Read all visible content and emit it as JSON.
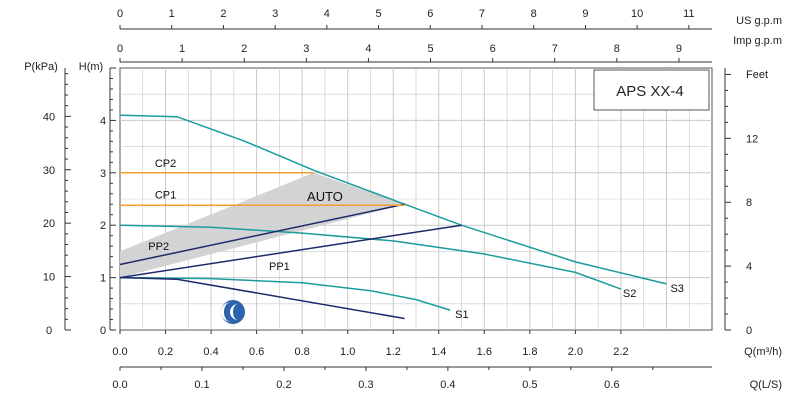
{
  "chart_data": {
    "type": "line",
    "title": "APS XX-4",
    "axes": {
      "q_m3h": {
        "label": "Q(m³/h)",
        "ticks": [
          "0.0",
          "0.2",
          "0.4",
          "0.6",
          "0.8",
          "1.0",
          "1.2",
          "1.4",
          "1.6",
          "1.8",
          "2.0",
          "2.2"
        ],
        "range": [
          0,
          2.6
        ]
      },
      "q_ls": {
        "label": "Q(L/S)",
        "ticks": [
          "0.0",
          "0.1",
          "0.2",
          "0.3",
          "0.4",
          "0.5",
          "0.6"
        ],
        "range": [
          0,
          0.7222
        ]
      },
      "us_gpm": {
        "label": "US  g.p.m",
        "ticks": [
          "0",
          "1",
          "2",
          "3",
          "4",
          "5",
          "6",
          "7",
          "8",
          "9",
          "10",
          "11"
        ]
      },
      "imp_gpm": {
        "label": "Imp  g.p.m",
        "ticks": [
          "0",
          "1",
          "2",
          "3",
          "4",
          "5",
          "6",
          "7",
          "8",
          "9"
        ]
      },
      "h_m": {
        "label": "H(m)",
        "ticks": [
          "0",
          "1",
          "2",
          "3",
          "4"
        ],
        "range": [
          0,
          5.0
        ]
      },
      "p_kpa": {
        "label": "P(kPa)",
        "ticks": [
          "0",
          "10",
          "20",
          "30",
          "40"
        ]
      },
      "feet": {
        "label": "Feet",
        "ticks": [
          "0",
          "4",
          "8",
          "12"
        ]
      }
    },
    "grid": true,
    "auto_label": "AUTO",
    "auto_region": [
      [
        0.0,
        1.5
      ],
      [
        0.85,
        3.0
      ],
      [
        1.25,
        2.4
      ],
      [
        0.0,
        1.0
      ]
    ],
    "series": [
      {
        "name": "S3",
        "color": "#1b9c9c",
        "points": [
          [
            0.0,
            4.1
          ],
          [
            0.25,
            4.07
          ],
          [
            0.55,
            3.6
          ],
          [
            0.85,
            3.05
          ],
          [
            1.25,
            2.4
          ],
          [
            1.5,
            2.0
          ],
          [
            2.0,
            1.3
          ],
          [
            2.4,
            0.88
          ]
        ]
      },
      {
        "name": "S2",
        "color": "#1b9c9c",
        "points": [
          [
            0.0,
            2.0
          ],
          [
            0.4,
            1.96
          ],
          [
            0.8,
            1.85
          ],
          [
            1.2,
            1.7
          ],
          [
            1.6,
            1.45
          ],
          [
            2.0,
            1.1
          ],
          [
            2.2,
            0.78
          ]
        ]
      },
      {
        "name": "S1",
        "color": "#1b9c9c",
        "points": [
          [
            0.0,
            1.0
          ],
          [
            0.4,
            0.98
          ],
          [
            0.8,
            0.9
          ],
          [
            1.1,
            0.75
          ],
          [
            1.3,
            0.58
          ],
          [
            1.45,
            0.38
          ]
        ]
      },
      {
        "name": "",
        "color": "#1c2a6b",
        "points": [
          [
            0.0,
            1.0
          ],
          [
            0.25,
            0.97
          ],
          [
            1.25,
            0.22
          ]
        ]
      },
      {
        "name": "PP2",
        "color": "#1c2a6b",
        "points": [
          [
            0.0,
            1.25
          ],
          [
            1.25,
            2.4
          ]
        ]
      },
      {
        "name": "PP1",
        "color": "#1c2a6b",
        "points": [
          [
            0.0,
            1.0
          ],
          [
            1.5,
            2.0
          ]
        ]
      },
      {
        "name": "CP2",
        "color": "#f0a030",
        "points": [
          [
            0.0,
            3.0
          ],
          [
            0.85,
            3.0
          ]
        ]
      },
      {
        "name": "CP1",
        "color": "#f0a030",
        "points": [
          [
            0.0,
            2.38
          ],
          [
            1.25,
            2.38
          ]
        ]
      }
    ],
    "colors": {
      "grid": "#c9c9c9",
      "frame": "#555555",
      "auto_fill": "#d3d3d3",
      "logo": "#2e63ae"
    }
  }
}
